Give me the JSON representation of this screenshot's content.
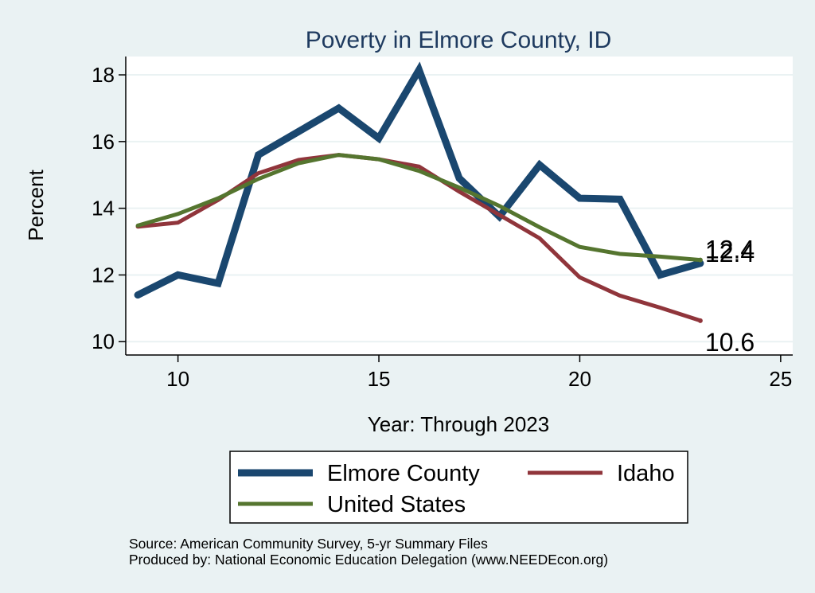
{
  "chart_data": {
    "type": "line",
    "title": "Poverty in Elmore County, ID",
    "xlabel": "Year: Through 2023",
    "ylabel": "Percent",
    "xlim": [
      8.7,
      25.3
    ],
    "ylim": [
      9.6,
      18.55
    ],
    "xticks": [
      10,
      15,
      20,
      25
    ],
    "yticks": [
      10,
      12,
      14,
      16,
      18
    ],
    "grid": "horizontal",
    "legend_position": "bottom",
    "series": [
      {
        "name": "Elmore County",
        "color": "#1a476f",
        "x": [
          9,
          10,
          11,
          12,
          13,
          14,
          15,
          16,
          17,
          18,
          19,
          20,
          21,
          22,
          23
        ],
        "values": [
          11.4,
          12.0,
          11.75,
          15.6,
          16.3,
          17.0,
          16.1,
          18.15,
          14.9,
          13.75,
          15.3,
          14.3,
          14.27,
          12.0,
          12.35
        ],
        "end_label": "12.4"
      },
      {
        "name": "Idaho",
        "color": "#90353b",
        "x": [
          9,
          10,
          11,
          12,
          13,
          14,
          15,
          16,
          17,
          18,
          19,
          20,
          21,
          22,
          23
        ],
        "values": [
          13.45,
          13.57,
          14.25,
          15.05,
          15.45,
          15.6,
          15.47,
          15.25,
          14.5,
          13.8,
          13.1,
          11.93,
          11.38,
          11.02,
          10.63
        ],
        "end_label": "10.6"
      },
      {
        "name": "United States",
        "color": "#55752f",
        "x": [
          9,
          10,
          11,
          12,
          13,
          14,
          15,
          16,
          17,
          18,
          19,
          20,
          21,
          22,
          23
        ],
        "values": [
          13.48,
          13.83,
          14.3,
          14.88,
          15.35,
          15.6,
          15.47,
          15.12,
          14.62,
          14.07,
          13.43,
          12.84,
          12.63,
          12.55,
          12.45
        ],
        "end_label": "12.4"
      }
    ]
  },
  "notes": {
    "source": "Source: American Community Survey, 5-yr Summary Files",
    "producer": "Produced by: National Economic Education Delegation (www.NEEDEcon.org)"
  }
}
